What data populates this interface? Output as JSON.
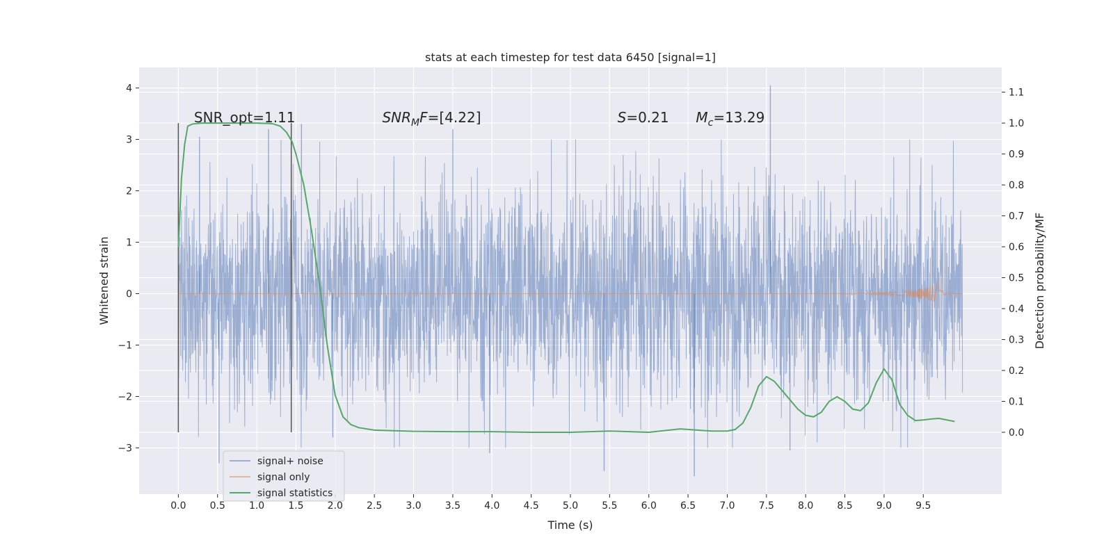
{
  "chart_data": {
    "type": "line",
    "title": "stats at each timestep for test data 6450 [signal=1]",
    "xlabel": "Time (s)",
    "ylabel": "Whitened strain",
    "y2label": "Detection probability/MF",
    "xlim": [
      -0.5,
      10.5
    ],
    "ylim": [
      -3.9,
      4.4
    ],
    "y2lim": [
      -0.2,
      1.18
    ],
    "xticks": [
      "0.0",
      "0.5",
      "1.0",
      "1.5",
      "2.0",
      "2.5",
      "3.0",
      "3.5",
      "4.0",
      "4.5",
      "5.0",
      "5.5",
      "6.0",
      "6.5",
      "7.0",
      "7.5",
      "8.0",
      "8.5",
      "9.0",
      "9.5"
    ],
    "yticks": [
      "−3",
      "−2",
      "−1",
      "0",
      "1",
      "2",
      "3",
      "4"
    ],
    "y2ticks": [
      "0.0",
      "0.1",
      "0.2",
      "0.3",
      "0.4",
      "0.5",
      "0.6",
      "0.7",
      "0.8",
      "0.9",
      "1.0",
      "1.1"
    ],
    "grid": true,
    "legend_position": "lower-left",
    "vlines": [
      {
        "x": 0.0,
        "y2_range": [
          0.0,
          1.0
        ]
      },
      {
        "x": 1.44,
        "y2_range": [
          0.0,
          1.0
        ]
      }
    ],
    "annotations": [
      {
        "x": 0.2,
        "y2": 1.0,
        "parts": [
          {
            "t": "SNR_opt=1.11",
            "style": "normal"
          }
        ]
      },
      {
        "x": 2.6,
        "y2": 1.0,
        "parts": [
          {
            "t": "SNR",
            "style": "italic"
          },
          {
            "t": "M",
            "style": "italic-sub"
          },
          {
            "t": "F",
            "style": "italic"
          },
          {
            "t": "=[4.22]",
            "style": "normal"
          }
        ]
      },
      {
        "x": 5.6,
        "y2": 1.0,
        "parts": [
          {
            "t": "S",
            "style": "italic"
          },
          {
            "t": "=0.21",
            "style": "normal"
          }
        ]
      },
      {
        "x": 6.6,
        "y2": 1.0,
        "parts": [
          {
            "t": "M",
            "style": "italic"
          },
          {
            "t": "c",
            "style": "italic-sub"
          },
          {
            "t": "=13.29",
            "style": "normal"
          }
        ]
      }
    ],
    "series": [
      {
        "name": "signal+ noise",
        "axis": "left",
        "color": "#4c72b0",
        "t_range": [
          0.0,
          10.0
        ],
        "band_sigma": 1.0,
        "y_extremes": [
          {
            "x": 0.27,
            "y": 3.05
          },
          {
            "x": 0.52,
            "y": -3.3
          },
          {
            "x": 1.15,
            "y": 3.2
          },
          {
            "x": 1.57,
            "y": 3.3
          },
          {
            "x": 1.97,
            "y": -2.8
          },
          {
            "x": 3.5,
            "y": 3.2
          },
          {
            "x": 3.97,
            "y": -3.1
          },
          {
            "x": 5.43,
            "y": -3.45
          },
          {
            "x": 7.55,
            "y": 4.05
          },
          {
            "x": 6.58,
            "y": -3.55
          },
          {
            "x": 7.8,
            "y": -3.05
          }
        ]
      },
      {
        "name": "signal only",
        "axis": "left",
        "color": "#dd8452",
        "t_range": [
          0.0,
          10.0
        ],
        "chirp_peak": {
          "x": 9.68,
          "amplitude": 0.18
        }
      },
      {
        "name": "signal statistics",
        "axis": "right",
        "color": "#55a868",
        "x": [
          0.0,
          0.04,
          0.08,
          0.12,
          0.18,
          0.3,
          0.5,
          0.8,
          1.0,
          1.2,
          1.3,
          1.38,
          1.45,
          1.5,
          1.6,
          1.7,
          1.8,
          1.9,
          2.0,
          2.1,
          2.2,
          2.3,
          2.5,
          3.0,
          3.5,
          4.0,
          4.5,
          5.0,
          5.5,
          6.0,
          6.4,
          6.8,
          7.0,
          7.1,
          7.2,
          7.3,
          7.4,
          7.5,
          7.6,
          7.7,
          7.8,
          7.9,
          8.0,
          8.1,
          8.2,
          8.3,
          8.4,
          8.5,
          8.6,
          8.7,
          8.8,
          8.9,
          9.0,
          9.1,
          9.2,
          9.3,
          9.4,
          9.5,
          9.6,
          9.7,
          9.8,
          9.9
        ],
        "y": [
          0.6,
          0.82,
          0.93,
          0.99,
          0.997,
          1.0,
          1.0,
          1.0,
          1.0,
          0.998,
          0.99,
          0.97,
          0.94,
          0.9,
          0.8,
          0.65,
          0.48,
          0.28,
          0.12,
          0.05,
          0.025,
          0.015,
          0.007,
          0.003,
          0.002,
          0.002,
          0.0,
          0.0,
          0.004,
          0.0,
          0.011,
          0.004,
          0.004,
          0.009,
          0.03,
          0.08,
          0.15,
          0.18,
          0.165,
          0.135,
          0.105,
          0.075,
          0.055,
          0.05,
          0.065,
          0.1,
          0.115,
          0.1,
          0.075,
          0.07,
          0.095,
          0.16,
          0.205,
          0.17,
          0.09,
          0.055,
          0.038,
          0.04,
          0.043,
          0.045,
          0.04,
          0.035
        ]
      }
    ]
  }
}
